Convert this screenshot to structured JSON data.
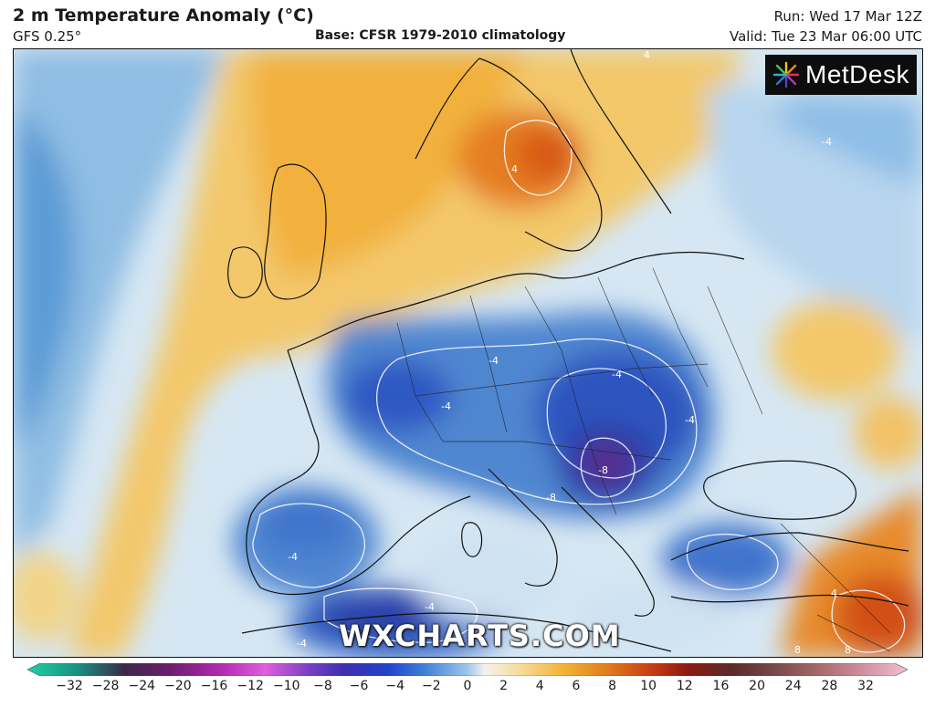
{
  "header": {
    "title": "2 m Temperature Anomaly (°C)",
    "model": "GFS 0.25°",
    "base": "Base: CFSR 1979-2010 climatology",
    "run": "Run: Wed 17 Mar 12Z",
    "valid": "Valid: Tue 23 Mar 06:00 UTC"
  },
  "logo": {
    "text": "MetDesk",
    "icon": "metdesk-starburst-icon"
  },
  "watermark": "WXCHARTS.COM",
  "colorbar": {
    "ticks": [
      "−32",
      "−28",
      "−24",
      "−20",
      "−16",
      "−12",
      "−10",
      "−8",
      "−6",
      "−4",
      "−2",
      "0",
      "2",
      "4",
      "6",
      "8",
      "10",
      "12",
      "16",
      "20",
      "24",
      "28",
      "32"
    ],
    "colors": [
      "#1fd1a4",
      "#1b8c80",
      "#3a2a4a",
      "#6b1d6b",
      "#b22ab0",
      "#e05ee0",
      "#7a3fc4",
      "#3b2fb0",
      "#2244c8",
      "#3d7fd6",
      "#9fc6ea",
      "#f4f2ee",
      "#f6dc9a",
      "#f2b234",
      "#e07a1c",
      "#c83b14",
      "#8c1a12",
      "#5a2a2a",
      "#7a4a4a",
      "#a86a6a",
      "#d090a0",
      "#f2c0d0",
      "#f2c0d0"
    ]
  },
  "map": {
    "contour_labels": [
      "-4",
      "-4",
      "-4",
      "-4",
      "-4",
      "-4",
      "-4",
      "-8",
      "-8",
      "4",
      "4",
      "4",
      "8",
      "8",
      "-4"
    ]
  }
}
